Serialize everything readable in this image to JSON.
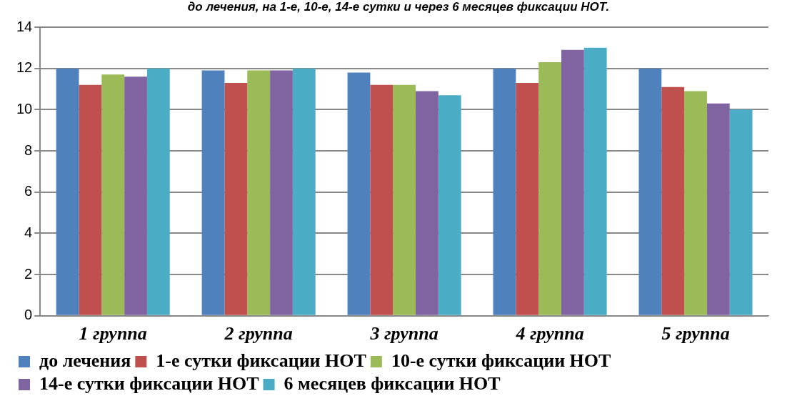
{
  "chart_data": {
    "type": "bar",
    "title": "до лечения, на 1-е, 10-е, 14-е сутки и через 6 месяцев фиксации НОТ.",
    "categories": [
      "1 группа",
      "2 группа",
      "3 группа",
      "4 группа",
      "5 группа"
    ],
    "series": [
      {
        "name": "до лечения",
        "color": "#4f81bd",
        "values": [
          12.0,
          11.9,
          11.8,
          12.0,
          12.0
        ]
      },
      {
        "name": "1-е сутки фиксации НОТ",
        "color": "#c0504d",
        "values": [
          11.2,
          11.3,
          11.2,
          11.3,
          11.1
        ]
      },
      {
        "name": "10-е сутки фиксации НОТ",
        "color": "#9bbb59",
        "values": [
          11.7,
          11.9,
          11.2,
          12.3,
          10.9
        ]
      },
      {
        "name": "14-е сутки фиксации НОТ",
        "color": "#8064a2",
        "values": [
          11.6,
          11.9,
          10.9,
          12.9,
          10.3
        ]
      },
      {
        "name": "6 месяцев фиксации НОТ",
        "color": "#4bacc6",
        "values": [
          12.0,
          12.0,
          10.7,
          13.0,
          10.0
        ]
      }
    ],
    "ylim": [
      0,
      14
    ],
    "yticks": [
      0,
      2,
      4,
      6,
      8,
      10,
      12,
      14
    ],
    "grid": "y",
    "legend": "bottom"
  }
}
